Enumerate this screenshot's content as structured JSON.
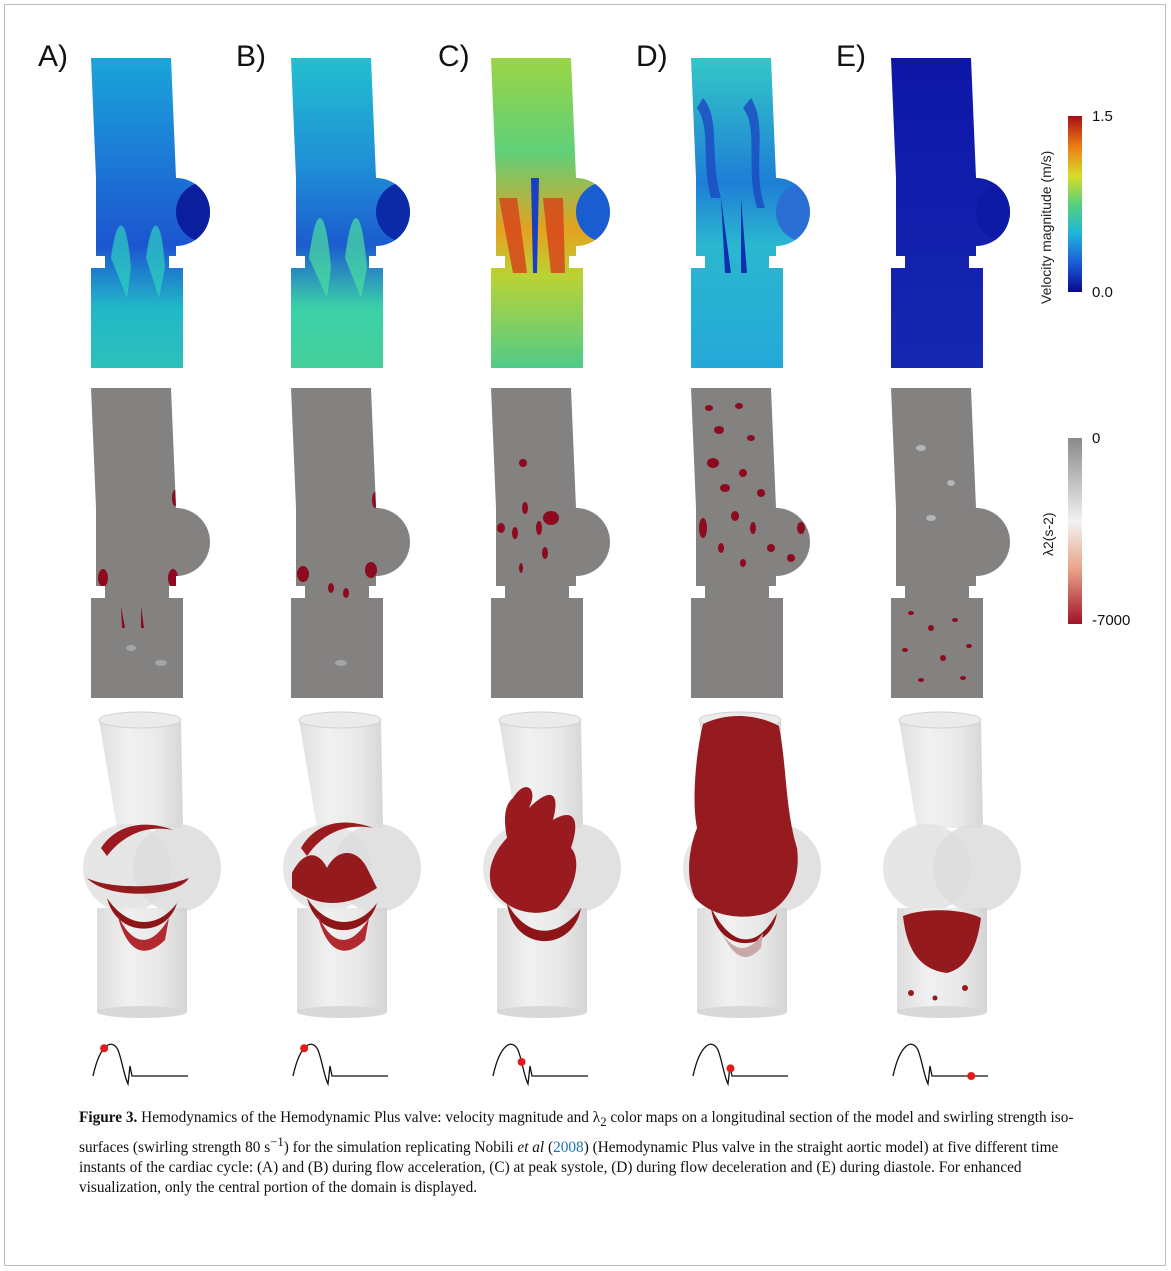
{
  "figure": {
    "panel_labels": [
      "A)",
      "B)",
      "C)",
      "D)",
      "E)"
    ],
    "velocity_colorbar": {
      "title": "Velocity magnitude (m/s)",
      "max_label": "1.5",
      "min_label": "0.0",
      "colors": [
        "#08088f",
        "#1c5fd8",
        "#1fb9d9",
        "#58d07a",
        "#d8dd2a",
        "#ee7a16",
        "#a50f15"
      ]
    },
    "lambda_colorbar": {
      "title": "λ2(s-2)",
      "max_label": "0",
      "min_label": "-7000",
      "colors": [
        "#8a8a8a",
        "#f2f2f2",
        "#e9a58a",
        "#a31228"
      ]
    },
    "phase_markers": [
      0.18,
      0.18,
      0.36,
      0.62,
      0.9
    ]
  },
  "caption": {
    "label": "Figure 3.",
    "part1": " Hemodynamics of the Hemodynamic Plus valve: velocity magnitude and λ",
    "sub2": "2",
    "part2": " color maps on a longitudinal section of the model and swirling strength iso-surfaces (swirling strength 80 s",
    "sup": "−1",
    "part3": ") for the simulation replicating Nobili ",
    "etal": "et al",
    "part4": " (",
    "year": "2008",
    "part5": ") (Hemodynamic Plus valve in the straight aortic model) at five different time instants of the cardiac cycle: (A) and (B) during flow acceleration, (C) at peak systole, (D) during flow deceleration and (E) during diastole. For enhanced visualization, only the central portion of the domain is displayed."
  }
}
